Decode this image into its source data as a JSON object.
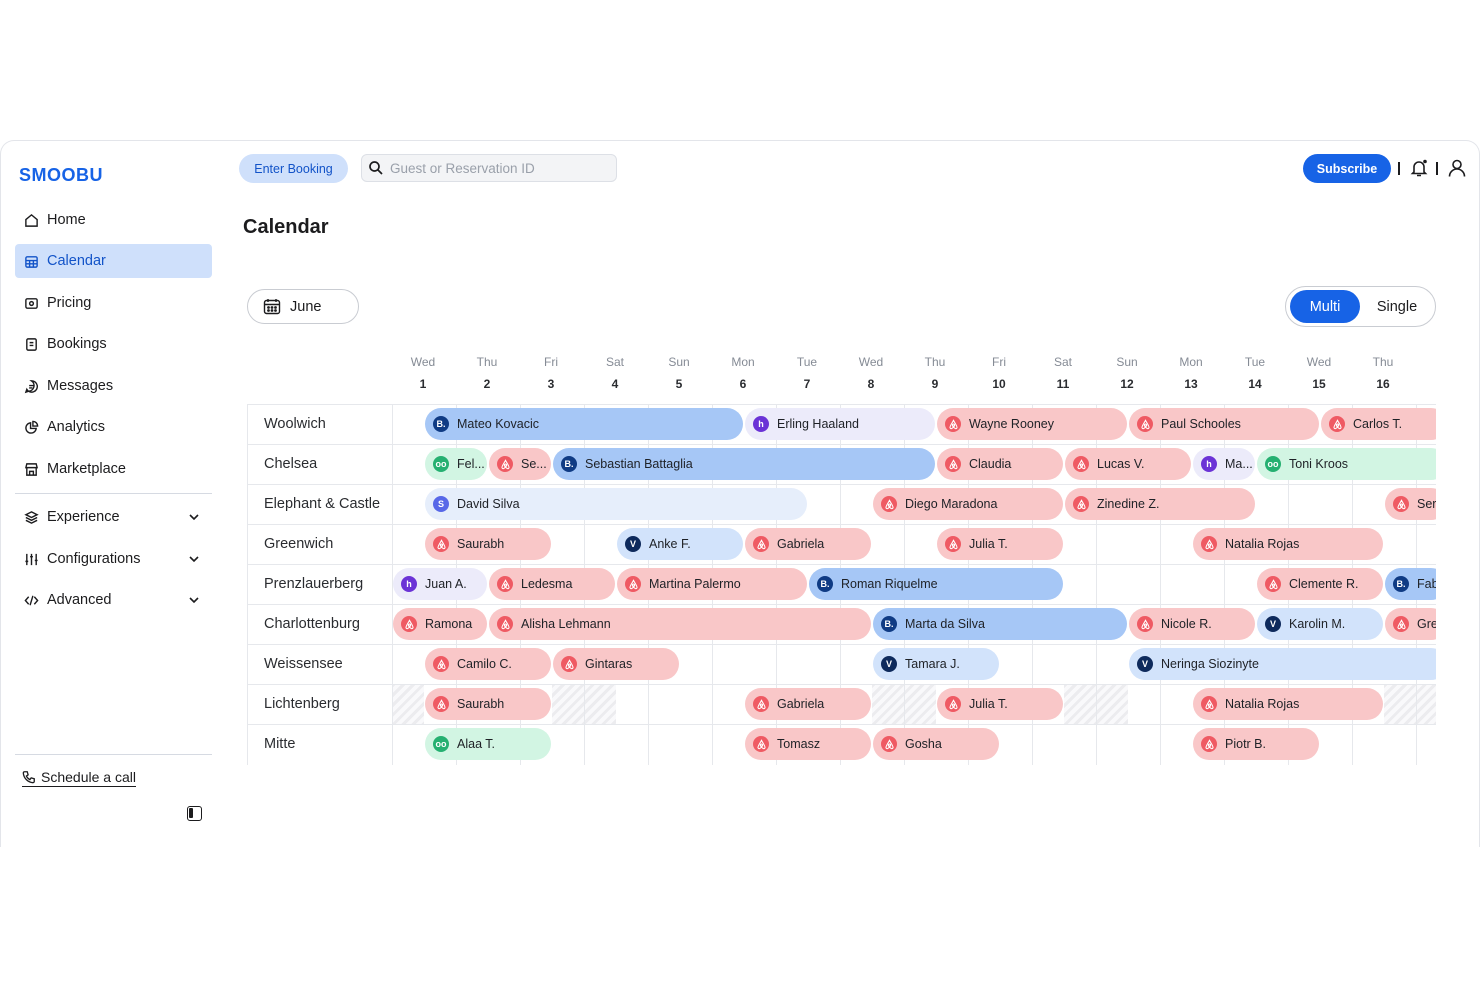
{
  "app": {
    "logo": "SMOOBU"
  },
  "sidebar": {
    "items": [
      {
        "label": "Home",
        "icon": "home-icon"
      },
      {
        "label": "Calendar",
        "icon": "calendar-icon",
        "active": true
      },
      {
        "label": "Pricing",
        "icon": "pricing-icon"
      },
      {
        "label": "Bookings",
        "icon": "bookings-icon"
      },
      {
        "label": "Messages",
        "icon": "messages-icon"
      },
      {
        "label": "Analytics",
        "icon": "analytics-icon"
      },
      {
        "label": "Marketplace",
        "icon": "marketplace-icon"
      }
    ],
    "groups": [
      {
        "label": "Experience",
        "icon": "layers-icon"
      },
      {
        "label": "Configurations",
        "icon": "sliders-icon"
      },
      {
        "label": "Advanced",
        "icon": "code-icon"
      }
    ],
    "schedule_call": "Schedule a call"
  },
  "header": {
    "enter_booking": "Enter Booking",
    "search_placeholder": "Guest or Reservation ID",
    "subscribe": "Subscribe"
  },
  "page": {
    "title": "Calendar",
    "month": "June",
    "view_toggle": {
      "multi": "Multi",
      "single": "Single",
      "selected": "Multi"
    }
  },
  "calendar": {
    "days": [
      {
        "name": "Wed",
        "num": "1"
      },
      {
        "name": "Thu",
        "num": "2"
      },
      {
        "name": "Fri",
        "num": "3"
      },
      {
        "name": "Sat",
        "num": "4"
      },
      {
        "name": "Sun",
        "num": "5"
      },
      {
        "name": "Mon",
        "num": "6"
      },
      {
        "name": "Tue",
        "num": "7"
      },
      {
        "name": "Wed",
        "num": "8"
      },
      {
        "name": "Thu",
        "num": "9"
      },
      {
        "name": "Fri",
        "num": "10"
      },
      {
        "name": "Sat",
        "num": "11"
      },
      {
        "name": "Sun",
        "num": "12"
      },
      {
        "name": "Mon",
        "num": "13"
      },
      {
        "name": "Tue",
        "num": "14"
      },
      {
        "name": "Wed",
        "num": "15"
      },
      {
        "name": "Thu",
        "num": "16"
      }
    ],
    "properties": [
      "Woolwich",
      "Chelsea",
      "Elephant & Castle",
      "Greenwich",
      "Prenzlauerberg",
      "Charlottenburg",
      "Weissensee",
      "Lichtenberg",
      "Mitte"
    ],
    "bookings": [
      {
        "row": 0,
        "start": 0.5,
        "end": 5.5,
        "guest": "Mateo Kovacic",
        "channel": "booking"
      },
      {
        "row": 0,
        "start": 5.5,
        "end": 8.5,
        "guest": "Erling Haaland",
        "channel": "hostaway"
      },
      {
        "row": 0,
        "start": 8.5,
        "end": 11.5,
        "guest": "Wayne Rooney",
        "channel": "airbnb"
      },
      {
        "row": 0,
        "start": 11.5,
        "end": 14.5,
        "guest": "Paul Schooles",
        "channel": "airbnb"
      },
      {
        "row": 0,
        "start": 14.5,
        "end": 16.5,
        "guest": "Carlos T.",
        "channel": "airbnb"
      },
      {
        "row": 1,
        "start": 0.5,
        "end": 1.5,
        "guest": "Fel...",
        "channel": "trip"
      },
      {
        "row": 1,
        "start": 1.5,
        "end": 2.5,
        "guest": "Se...",
        "channel": "airbnb"
      },
      {
        "row": 1,
        "start": 2.5,
        "end": 8.5,
        "guest": "Sebastian Battaglia",
        "channel": "booking"
      },
      {
        "row": 1,
        "start": 8.5,
        "end": 10.5,
        "guest": "Claudia",
        "channel": "airbnb"
      },
      {
        "row": 1,
        "start": 10.5,
        "end": 12.5,
        "guest": "Lucas V.",
        "channel": "airbnb"
      },
      {
        "row": 1,
        "start": 12.5,
        "end": 13.5,
        "guest": "Ma...",
        "channel": "hostaway"
      },
      {
        "row": 1,
        "start": 13.5,
        "end": 16.5,
        "guest": "Toni Kroos",
        "channel": "trip"
      },
      {
        "row": 2,
        "start": 0.5,
        "end": 6.5,
        "guest": "David Silva",
        "channel": "stripe"
      },
      {
        "row": 2,
        "start": 7.5,
        "end": 10.5,
        "guest": "Diego Maradona",
        "channel": "airbnb"
      },
      {
        "row": 2,
        "start": 10.5,
        "end": 13.5,
        "guest": "Zinedine Z.",
        "channel": "airbnb"
      },
      {
        "row": 2,
        "start": 15.5,
        "end": 16.5,
        "guest": "Ser",
        "channel": "airbnb"
      },
      {
        "row": 3,
        "start": 0.5,
        "end": 2.5,
        "guest": "Saurabh",
        "channel": "airbnb"
      },
      {
        "row": 3,
        "start": 3.5,
        "end": 5.5,
        "guest": "Anke F.",
        "channel": "vrbo"
      },
      {
        "row": 3,
        "start": 5.5,
        "end": 7.5,
        "guest": "Gabriela",
        "channel": "airbnb"
      },
      {
        "row": 3,
        "start": 8.5,
        "end": 10.5,
        "guest": "Julia T.",
        "channel": "airbnb"
      },
      {
        "row": 3,
        "start": 12.5,
        "end": 15.5,
        "guest": "Natalia Rojas",
        "channel": "airbnb"
      },
      {
        "row": 4,
        "start": 0,
        "end": 1.5,
        "guest": "Juan A.",
        "channel": "hostaway"
      },
      {
        "row": 4,
        "start": 1.5,
        "end": 3.5,
        "guest": "Ledesma",
        "channel": "airbnb"
      },
      {
        "row": 4,
        "start": 3.5,
        "end": 6.5,
        "guest": "Martina Palermo",
        "channel": "airbnb"
      },
      {
        "row": 4,
        "start": 6.5,
        "end": 10.5,
        "guest": "Roman Riquelme",
        "channel": "booking"
      },
      {
        "row": 4,
        "start": 13.5,
        "end": 15.5,
        "guest": "Clemente R.",
        "channel": "airbnb"
      },
      {
        "row": 4,
        "start": 15.5,
        "end": 16.5,
        "guest": "Fab",
        "channel": "booking"
      },
      {
        "row": 5,
        "start": 0,
        "end": 1.5,
        "guest": "Ramona",
        "channel": "airbnb"
      },
      {
        "row": 5,
        "start": 1.5,
        "end": 7.5,
        "guest": "Alisha Lehmann",
        "channel": "airbnb"
      },
      {
        "row": 5,
        "start": 7.5,
        "end": 11.5,
        "guest": "Marta da Silva",
        "channel": "booking"
      },
      {
        "row": 5,
        "start": 11.5,
        "end": 13.5,
        "guest": "Nicole R.",
        "channel": "airbnb"
      },
      {
        "row": 5,
        "start": 13.5,
        "end": 15.5,
        "guest": "Karolin M.",
        "channel": "vrbo"
      },
      {
        "row": 5,
        "start": 15.5,
        "end": 16.5,
        "guest": "Gre",
        "channel": "airbnb"
      },
      {
        "row": 6,
        "start": 0.5,
        "end": 2.5,
        "guest": "Camilo C.",
        "channel": "airbnb"
      },
      {
        "row": 6,
        "start": 2.5,
        "end": 4.5,
        "guest": "Gintaras",
        "channel": "airbnb"
      },
      {
        "row": 6,
        "start": 7.5,
        "end": 9.5,
        "guest": "Tamara J.",
        "channel": "vrbo"
      },
      {
        "row": 6,
        "start": 11.5,
        "end": 16.5,
        "guest": "Neringa Siozinyte",
        "channel": "vrbo"
      },
      {
        "row": 7,
        "start": 0.5,
        "end": 2.5,
        "guest": "Saurabh",
        "channel": "airbnb"
      },
      {
        "row": 7,
        "start": 5.5,
        "end": 7.5,
        "guest": "Gabriela",
        "channel": "airbnb"
      },
      {
        "row": 7,
        "start": 8.5,
        "end": 10.5,
        "guest": "Julia T.",
        "channel": "airbnb"
      },
      {
        "row": 7,
        "start": 12.5,
        "end": 15.5,
        "guest": "Natalia Rojas",
        "channel": "airbnb"
      },
      {
        "row": 8,
        "start": 0.5,
        "end": 2.5,
        "guest": "Alaa T.",
        "channel": "trip"
      },
      {
        "row": 8,
        "start": 5.5,
        "end": 7.5,
        "guest": "Tomasz",
        "channel": "airbnb"
      },
      {
        "row": 8,
        "start": 7.5,
        "end": 9.5,
        "guest": "Gosha",
        "channel": "airbnb"
      },
      {
        "row": 8,
        "start": 12.5,
        "end": 14.5,
        "guest": "Piotr B.",
        "channel": "airbnb"
      }
    ],
    "blocked": [
      {
        "row": 7,
        "start": 0,
        "end": 0.5
      },
      {
        "row": 7,
        "start": 2.5,
        "end": 3.5
      },
      {
        "row": 7,
        "start": 7.5,
        "end": 8.5
      },
      {
        "row": 7,
        "start": 10.5,
        "end": 11.5
      },
      {
        "row": 7,
        "start": 15.5,
        "end": 16.5
      }
    ],
    "channel_glyphs": {
      "booking": "B.",
      "vrbo": "V",
      "hostaway": "h",
      "trip": "oo",
      "stripe": "S",
      "airbnb": ""
    }
  },
  "colors": {
    "accent": "#1763e6",
    "airbnb": "#f9c7c8",
    "booking": "#a6c7f6",
    "vrbo": "#d2e3fb",
    "hostaway": "#ecebfa",
    "trip": "#d2f5e3"
  }
}
